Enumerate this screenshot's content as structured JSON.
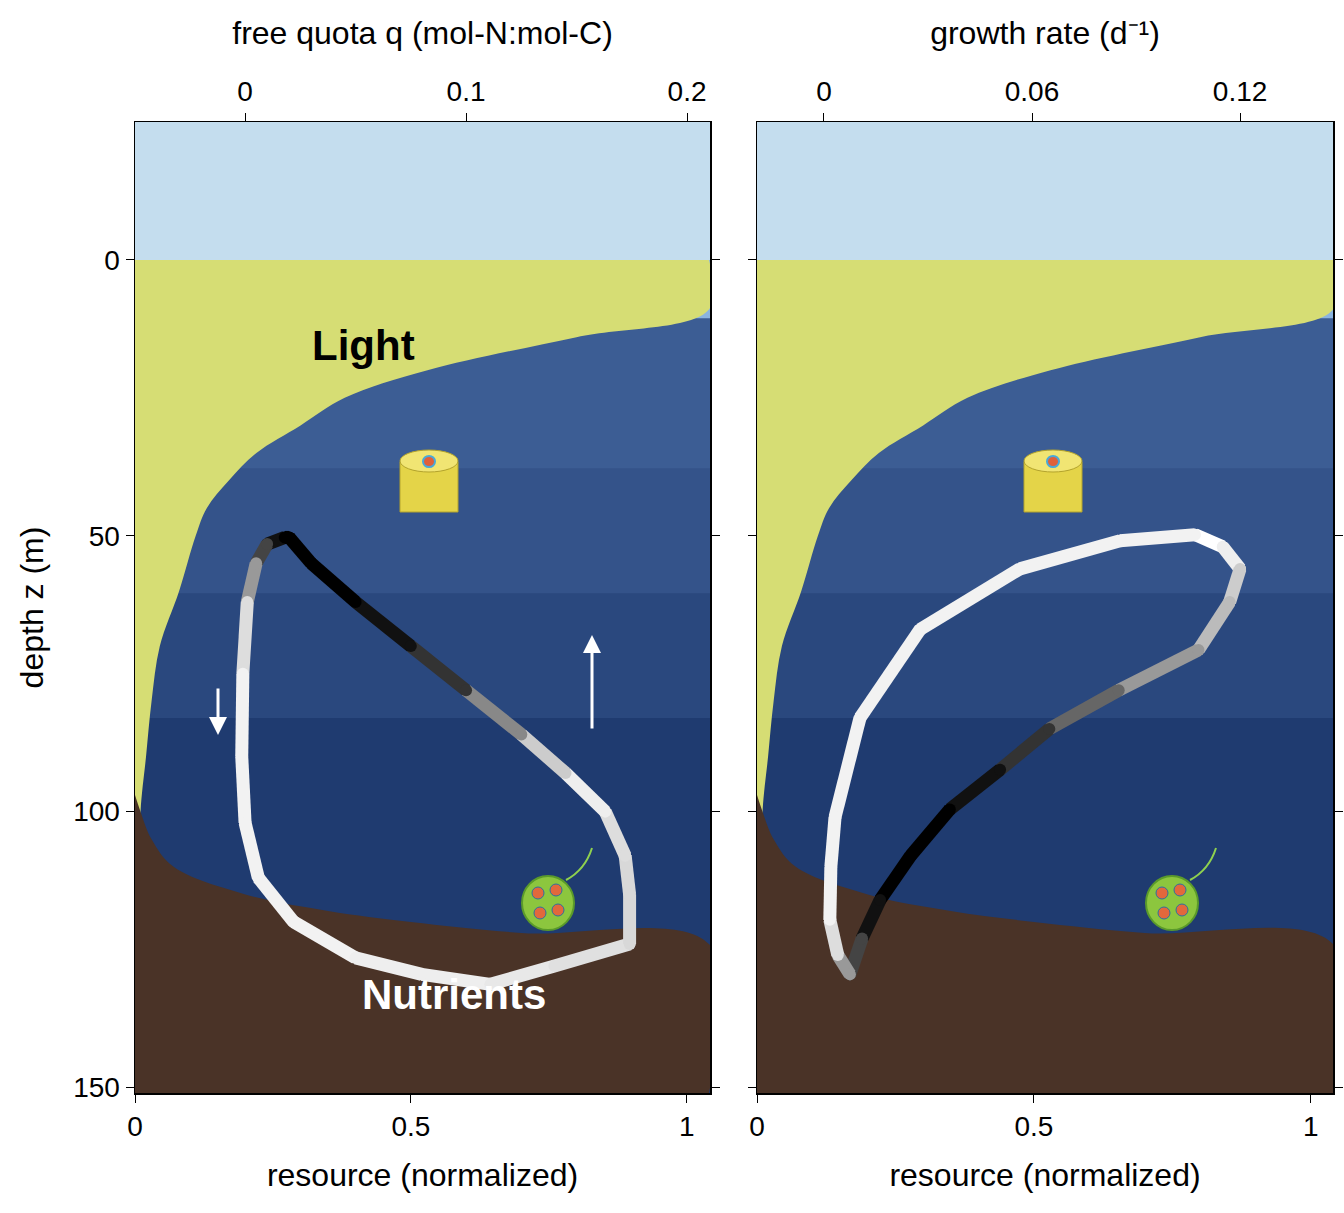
{
  "chart_data": [
    {
      "type": "line",
      "x_label": "resource (normalized)",
      "x2_label": "free quota q (mol-N:mol-C)",
      "y_label": "depth z (m)",
      "xlim": [
        0,
        1.042
      ],
      "xticks": [
        0,
        0.5,
        1
      ],
      "x2lim": [
        -0.0498,
        0.2104
      ],
      "x2ticks": [
        0,
        0.1,
        0.2
      ],
      "ylim": [
        151,
        -25
      ],
      "yticks": [
        0,
        50,
        100,
        150
      ],
      "annotations": [
        "Light",
        "Nutrients"
      ],
      "light_profile": {
        "color": "#d6dd74",
        "x": [
          1.04,
          1.04,
          0.8,
          0.53,
          0.38,
          0.3,
          0.22,
          0.17,
          0.13,
          0.11,
          0.08,
          0.045,
          0.03,
          0.02,
          0.01,
          0.005,
          0.003
        ],
        "y": [
          0,
          9,
          14,
          20,
          25,
          30,
          35,
          40,
          45,
          50,
          60,
          70,
          80,
          90,
          100,
          120,
          151
        ]
      },
      "nutrient_profile": {
        "color": "#4a3327",
        "x": [
          0,
          0.01,
          0.03,
          0.07,
          0.2,
          0.35,
          0.5,
          0.7,
          1.04,
          1.04
        ],
        "y": [
          97,
          100,
          105,
          110,
          115,
          118,
          120,
          122,
          124,
          151
        ]
      },
      "trajectory": {
        "x": [
          0.018,
          0.01,
          0.005,
          0.001,
          -0.001,
          -0.0015,
          0,
          0.006,
          0.022,
          0.05,
          0.08,
          0.111,
          0.14,
          0.174,
          0.174,
          0.172,
          0.163,
          0.145,
          0.125,
          0.1,
          0.075,
          0.05,
          0.03,
          0.02,
          0.018
        ],
        "y": [
          50.3,
          51.5,
          55,
          62,
          75,
          90,
          102,
          112,
          120,
          126.5,
          129.5,
          131.3,
          128,
          124,
          115,
          108,
          100,
          93,
          86,
          78,
          70,
          62,
          55,
          50.3,
          50.3
        ],
        "colors": [
          "#111111",
          "#444444",
          "#999999",
          "#dddddd",
          "#f2f2f2",
          "#f2f2f2",
          "#f2f2f2",
          "#f2f2f2",
          "#f2f2f2",
          "#eeeeee",
          "#eeeeee",
          "#e8e8e8",
          "#e0e0e0",
          "#d8d8d8",
          "#d8d8d8",
          "#dddddd",
          "#eeeeee",
          "#cccccc",
          "#888888",
          "#333333",
          "#111111",
          "#000000",
          "#000000",
          "#000000",
          "#000000"
        ]
      }
    },
    {
      "type": "line",
      "x_label": "resource (normalized)",
      "x2_label": "growth rate (d⁻¹)",
      "xlim": [
        0,
        1.04
      ],
      "xticks": [
        0,
        0.5,
        1
      ],
      "x2lim": [
        -0.0193,
        0.1468
      ],
      "x2ticks": [
        0,
        0.06,
        0.12
      ],
      "ylim": [
        151,
        -25
      ],
      "yticks": [
        0,
        50,
        100,
        150
      ],
      "tick_labels": "x",
      "light_profile": {
        "color": "#d6dd74",
        "x": [
          1.04,
          1.04,
          0.8,
          0.53,
          0.38,
          0.3,
          0.22,
          0.17,
          0.13,
          0.11,
          0.08,
          0.045,
          0.03,
          0.02,
          0.01,
          0.005,
          0.003
        ],
        "y": [
          0,
          9,
          14,
          20,
          25,
          30,
          35,
          40,
          45,
          50,
          60,
          70,
          80,
          90,
          100,
          120,
          151
        ]
      },
      "nutrient_profile": {
        "color": "#4a3327",
        "x": [
          0,
          0.01,
          0.03,
          0.07,
          0.2,
          0.35,
          0.5,
          0.7,
          1.04,
          1.04
        ],
        "y": [
          97,
          100,
          105,
          110,
          115,
          118,
          120,
          122,
          124,
          151
        ]
      },
      "trajectory": {
        "x": [
          0.107,
          0.115,
          0.12,
          0.117,
          0.108,
          0.085,
          0.065,
          0.0508,
          0.0363,
          0.025,
          0.0162,
          0.011,
          0.0075,
          0.004,
          0.0017,
          0.002,
          0.0032,
          0.0104,
          0.0277,
          0.0565,
          0.0854,
          0.107
        ],
        "y": [
          49.8,
          52,
          56,
          62,
          70.7,
          78,
          85,
          92.4,
          99.6,
          108,
          116,
          123,
          129.5,
          126,
          119.6,
          110,
          101,
          83,
          67,
          56,
          50.9,
          49.8
        ],
        "colors": [
          "#ffffff",
          "#eeeeee",
          "#cccccc",
          "#bbbbbb",
          "#999999",
          "#666666",
          "#333333",
          "#111111",
          "#000000",
          "#000000",
          "#111111",
          "#444444",
          "#999999",
          "#dddddd",
          "#f2f2f2",
          "#f2f2f2",
          "#f2f2f2",
          "#f2f2f2",
          "#f2f2f2",
          "#f2f2f2",
          "#f2f2f2",
          "#f2f2f2"
        ]
      }
    }
  ]
}
